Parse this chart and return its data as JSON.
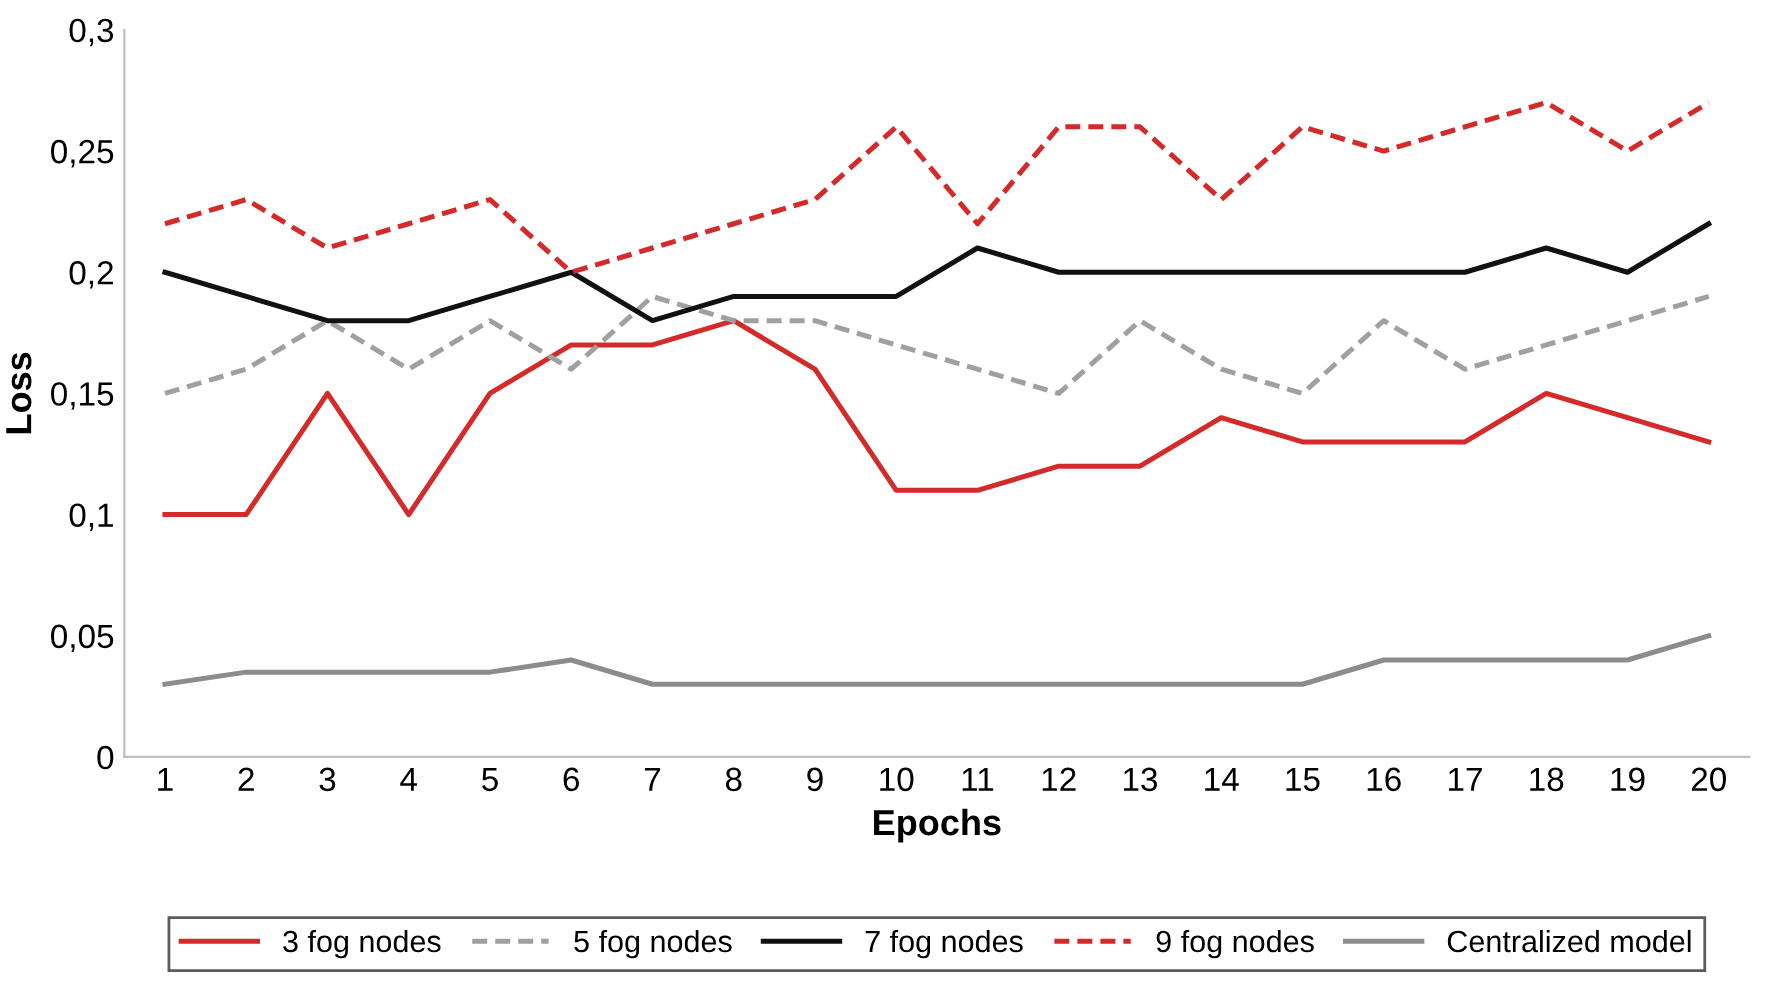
{
  "chart_data": {
    "type": "line",
    "xlabel": "Epochs",
    "ylabel": "Loss",
    "categories": [
      "1",
      "2",
      "3",
      "4",
      "5",
      "6",
      "7",
      "8",
      "9",
      "10",
      "11",
      "12",
      "13",
      "14",
      "15",
      "16",
      "17",
      "18",
      "19",
      "20"
    ],
    "ylim": [
      0,
      0.3
    ],
    "yticks": [
      {
        "value": 0,
        "label": "0"
      },
      {
        "value": 0.05,
        "label": "0,05"
      },
      {
        "value": 0.1,
        "label": "0,1"
      },
      {
        "value": 0.15,
        "label": "0,15"
      },
      {
        "value": 0.2,
        "label": "0,2"
      },
      {
        "value": 0.25,
        "label": "0,25"
      },
      {
        "value": 0.3,
        "label": "0,3"
      }
    ],
    "grid": false,
    "legend": "bottom",
    "marker": "none",
    "series": [
      {
        "name": "3 fog nodes",
        "color": "#d42a2a",
        "line_style": "solid",
        "values": [
          0.1,
          0.1,
          0.15,
          0.1,
          0.15,
          0.17,
          0.17,
          0.18,
          0.16,
          0.11,
          0.11,
          0.12,
          0.12,
          0.14,
          0.13,
          0.13,
          0.13,
          0.15,
          0.14,
          0.13
        ]
      },
      {
        "name": "5 fog nodes",
        "color": "#a0a0a0",
        "line_style": "dashed",
        "values": [
          0.15,
          0.16,
          0.18,
          0.16,
          0.18,
          0.16,
          0.19,
          0.18,
          0.18,
          0.17,
          0.16,
          0.15,
          0.18,
          0.16,
          0.15,
          0.18,
          0.16,
          0.17,
          0.18,
          0.19
        ]
      },
      {
        "name": "7 fog nodes",
        "color": "#111111",
        "line_style": "solid",
        "values": [
          0.2,
          0.19,
          0.18,
          0.18,
          0.19,
          0.2,
          0.18,
          0.19,
          0.19,
          0.19,
          0.21,
          0.2,
          0.2,
          0.2,
          0.2,
          0.2,
          0.2,
          0.21,
          0.2,
          0.22
        ]
      },
      {
        "name": "9 fog nodes",
        "color": "#d42a2a",
        "line_style": "dashed",
        "values": [
          0.22,
          0.23,
          0.21,
          0.22,
          0.23,
          0.2,
          0.21,
          0.22,
          0.23,
          0.26,
          0.22,
          0.26,
          0.26,
          0.23,
          0.26,
          0.25,
          0.26,
          0.27,
          0.25,
          0.27
        ]
      },
      {
        "name": "Centralized model",
        "color": "#8c8c8c",
        "line_style": "solid",
        "values": [
          0.03,
          0.035,
          0.035,
          0.035,
          0.035,
          0.04,
          0.03,
          0.03,
          0.03,
          0.03,
          0.03,
          0.03,
          0.03,
          0.03,
          0.03,
          0.04,
          0.04,
          0.04,
          0.04,
          0.05
        ]
      }
    ]
  }
}
